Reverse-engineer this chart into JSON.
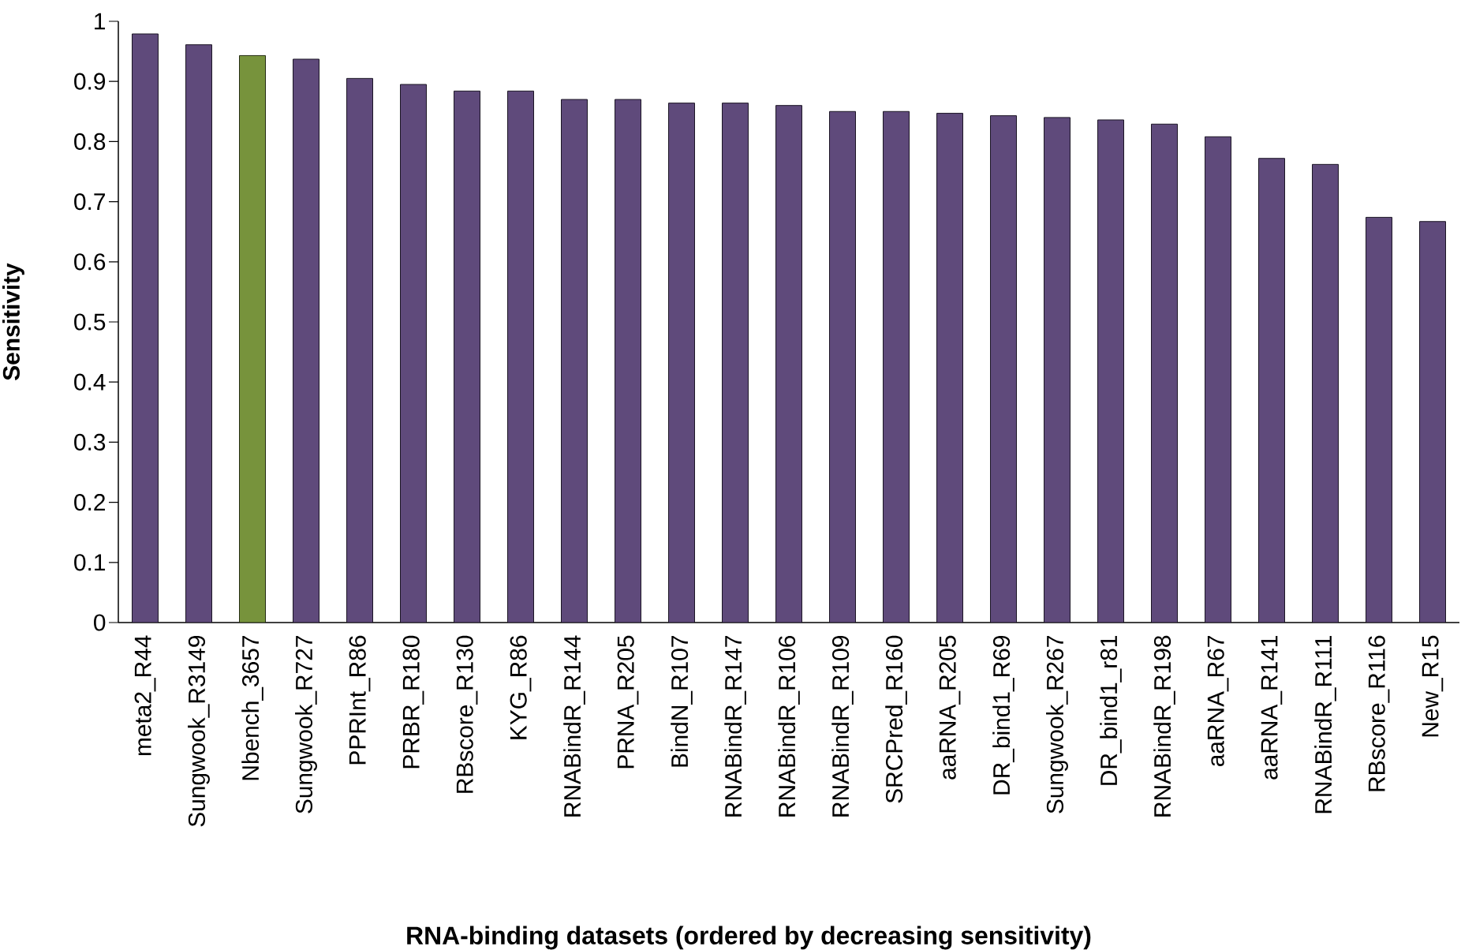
{
  "chart_data": {
    "type": "bar",
    "xlabel": "RNA-binding datasets (ordered by decreasing sensitivity)",
    "ylabel": "Sensitivity",
    "categories": [
      "meta2_R44",
      "Sungwook_R3149",
      "Nbench_3657",
      "Sungwook_R727",
      "PPRInt_R86",
      "PRBR_R180",
      "RBscore_R130",
      "KYG_R86",
      "RNABindR_R144",
      "PRNA_R205",
      "BindN_R107",
      "RNABindR_R147",
      "RNABindR_R106",
      "RNABindR_R109",
      "SRCPred_R160",
      "aaRNA_R205",
      "DR_bind1_R69",
      "Sungwook_R267",
      "DR_bind1_r81",
      "RNABindR_R198",
      "aaRNA_R67",
      "aaRNA_R141",
      "RNABindR_R111",
      "RBscore_R116",
      "New_R15"
    ],
    "values": [
      0.979,
      0.961,
      0.943,
      0.937,
      0.905,
      0.895,
      0.884,
      0.884,
      0.87,
      0.87,
      0.864,
      0.864,
      0.86,
      0.85,
      0.85,
      0.847,
      0.843,
      0.84,
      0.836,
      0.829,
      0.808,
      0.772,
      0.762,
      0.674,
      0.667
    ],
    "colors": [
      "#5f4a7b",
      "#5f4a7b",
      "#77933c",
      "#5f4a7b",
      "#5f4a7b",
      "#5f4a7b",
      "#5f4a7b",
      "#5f4a7b",
      "#5f4a7b",
      "#5f4a7b",
      "#5f4a7b",
      "#5f4a7b",
      "#5f4a7b",
      "#5f4a7b",
      "#5f4a7b",
      "#5f4a7b",
      "#5f4a7b",
      "#5f4a7b",
      "#5f4a7b",
      "#5f4a7b",
      "#5f4a7b",
      "#5f4a7b",
      "#5f4a7b",
      "#5f4a7b",
      "#5f4a7b"
    ],
    "ylim": [
      0,
      1
    ],
    "yticks": [
      0,
      0.1,
      0.2,
      0.3,
      0.4,
      0.5,
      0.6,
      0.7,
      0.8,
      0.9,
      1
    ]
  }
}
